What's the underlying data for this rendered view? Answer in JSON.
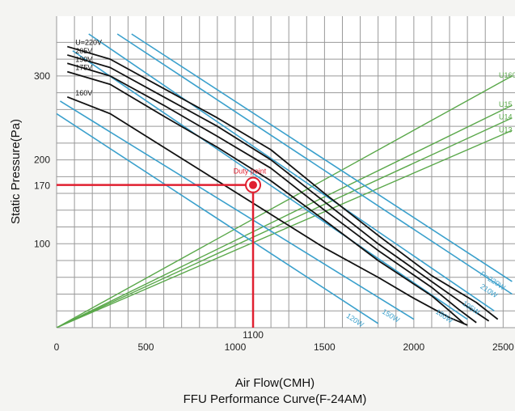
{
  "chart_data": {
    "type": "line",
    "title": "FFU Performance Curve(F-24AM)",
    "xlabel": "Air Flow(CMH)",
    "ylabel": "Static Pressure(Pa)",
    "xlim": [
      0,
      2550
    ],
    "ylim": [
      0,
      350
    ],
    "grid": true,
    "x_ticks": [
      0,
      500,
      1000,
      1500,
      2000,
      2500
    ],
    "y_ticks": [
      100,
      200,
      300
    ],
    "fan_curves": [
      {
        "name": "U=220V",
        "color": "#111111",
        "points": [
          [
            60,
            335
          ],
          [
            300,
            320
          ],
          [
            600,
            285
          ],
          [
            900,
            250
          ],
          [
            1200,
            212
          ],
          [
            1500,
            160
          ],
          [
            1800,
            110
          ],
          [
            2100,
            62
          ],
          [
            2350,
            30
          ],
          [
            2470,
            10
          ]
        ]
      },
      {
        "name": "205V",
        "color": "#111111",
        "points": [
          [
            60,
            325
          ],
          [
            300,
            310
          ],
          [
            600,
            275
          ],
          [
            900,
            240
          ],
          [
            1200,
            200
          ],
          [
            1500,
            150
          ],
          [
            1800,
            100
          ],
          [
            2100,
            55
          ],
          [
            2300,
            25
          ],
          [
            2420,
            8
          ]
        ]
      },
      {
        "name": "190V",
        "color": "#111111",
        "points": [
          [
            60,
            315
          ],
          [
            300,
            300
          ],
          [
            600,
            265
          ],
          [
            900,
            228
          ],
          [
            1200,
            190
          ],
          [
            1500,
            140
          ],
          [
            1800,
            92
          ],
          [
            2100,
            48
          ],
          [
            2250,
            22
          ],
          [
            2350,
            6
          ]
        ]
      },
      {
        "name": "175V",
        "color": "#111111",
        "points": [
          [
            60,
            305
          ],
          [
            300,
            290
          ],
          [
            600,
            252
          ],
          [
            900,
            215
          ],
          [
            1200,
            175
          ],
          [
            1500,
            128
          ],
          [
            1800,
            80
          ],
          [
            2100,
            38
          ],
          [
            2200,
            20
          ],
          [
            2280,
            5
          ]
        ]
      },
      {
        "name": "160V",
        "color": "#111111",
        "points": [
          [
            60,
            275
          ],
          [
            300,
            255
          ],
          [
            600,
            215
          ],
          [
            900,
            175
          ],
          [
            1200,
            135
          ],
          [
            1500,
            95
          ],
          [
            1800,
            60
          ],
          [
            2000,
            35
          ],
          [
            2200,
            12
          ],
          [
            2300,
            3
          ]
        ]
      }
    ],
    "system_lines": [
      {
        "name": "U160",
        "color": "#5aa84a",
        "points": [
          [
            0,
            0
          ],
          [
            2550,
            300
          ]
        ]
      },
      {
        "name": "U15",
        "color": "#5aa84a",
        "points": [
          [
            0,
            0
          ],
          [
            2550,
            265
          ]
        ]
      },
      {
        "name": "U14",
        "color": "#5aa84a",
        "points": [
          [
            0,
            0
          ],
          [
            2550,
            250
          ]
        ]
      },
      {
        "name": "U13",
        "color": "#5aa84a",
        "points": [
          [
            0,
            0
          ],
          [
            2550,
            235
          ]
        ]
      }
    ],
    "power_lines": [
      {
        "name": "P=220W",
        "color": "#3aa0cc",
        "points": [
          [
            420,
            350
          ],
          [
            2550,
            55
          ]
        ]
      },
      {
        "name": "210W",
        "color": "#3aa0cc",
        "points": [
          [
            340,
            350
          ],
          [
            2550,
            40
          ]
        ]
      },
      {
        "name": "195W",
        "color": "#3aa0cc",
        "points": [
          [
            180,
            350
          ],
          [
            2450,
            20
          ]
        ]
      },
      {
        "name": "180W",
        "color": "#3aa0cc",
        "points": [
          [
            90,
            330
          ],
          [
            2300,
            10
          ]
        ]
      },
      {
        "name": "150W",
        "color": "#3aa0cc",
        "points": [
          [
            20,
            270
          ],
          [
            2000,
            10
          ]
        ]
      },
      {
        "name": "120W",
        "color": "#3aa0cc",
        "points": [
          [
            0,
            255
          ],
          [
            1800,
            5
          ]
        ]
      }
    ],
    "annotations": {
      "duty_point": {
        "label": "Duty point",
        "x": 1100,
        "y": 170
      },
      "x_marker": "1100",
      "y_marker": "170",
      "color": "#e02030"
    }
  }
}
